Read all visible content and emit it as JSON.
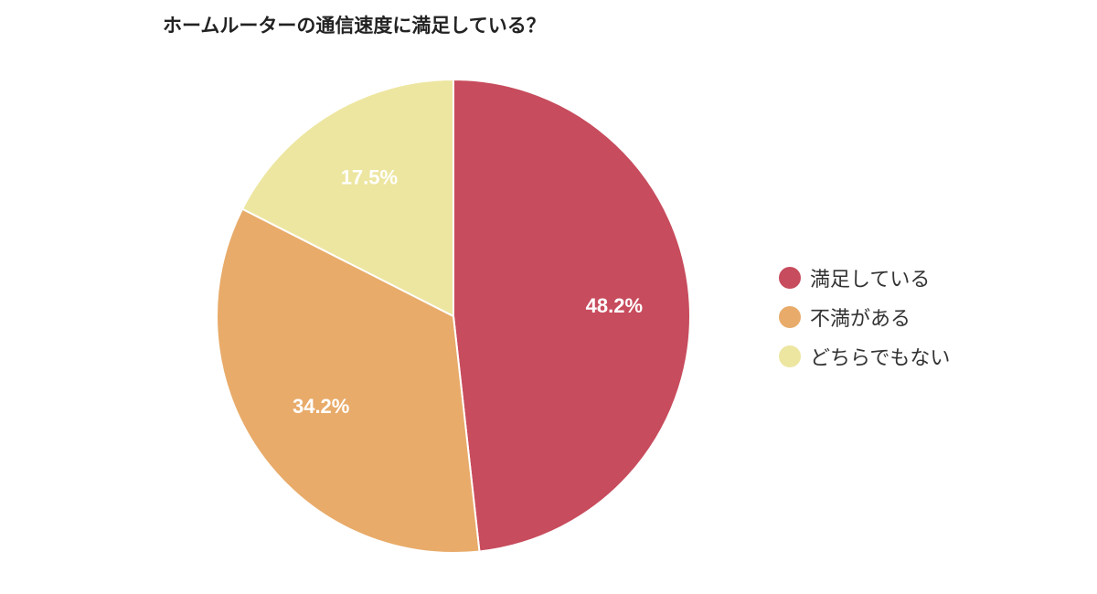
{
  "chart_data": {
    "type": "pie",
    "title": "ホームルーターの通信速度に満足している？",
    "categories": [
      "満足している",
      "不満がある",
      "どちらでもない"
    ],
    "values": [
      48.2,
      34.2,
      17.5
    ],
    "value_labels": [
      "48.2%",
      "34.2%",
      "17.5%"
    ],
    "colors": [
      "#c74c5d",
      "#e8ab6a",
      "#ede6a1"
    ],
    "start_angle_deg": 0,
    "direction": "clockwise",
    "legend": {
      "position": "right",
      "items": [
        {
          "label": "満足している",
          "color": "#c74c5d"
        },
        {
          "label": "不満がある",
          "color": "#e8ab6a"
        },
        {
          "label": "どちらでもない",
          "color": "#ede6a1"
        }
      ]
    }
  }
}
